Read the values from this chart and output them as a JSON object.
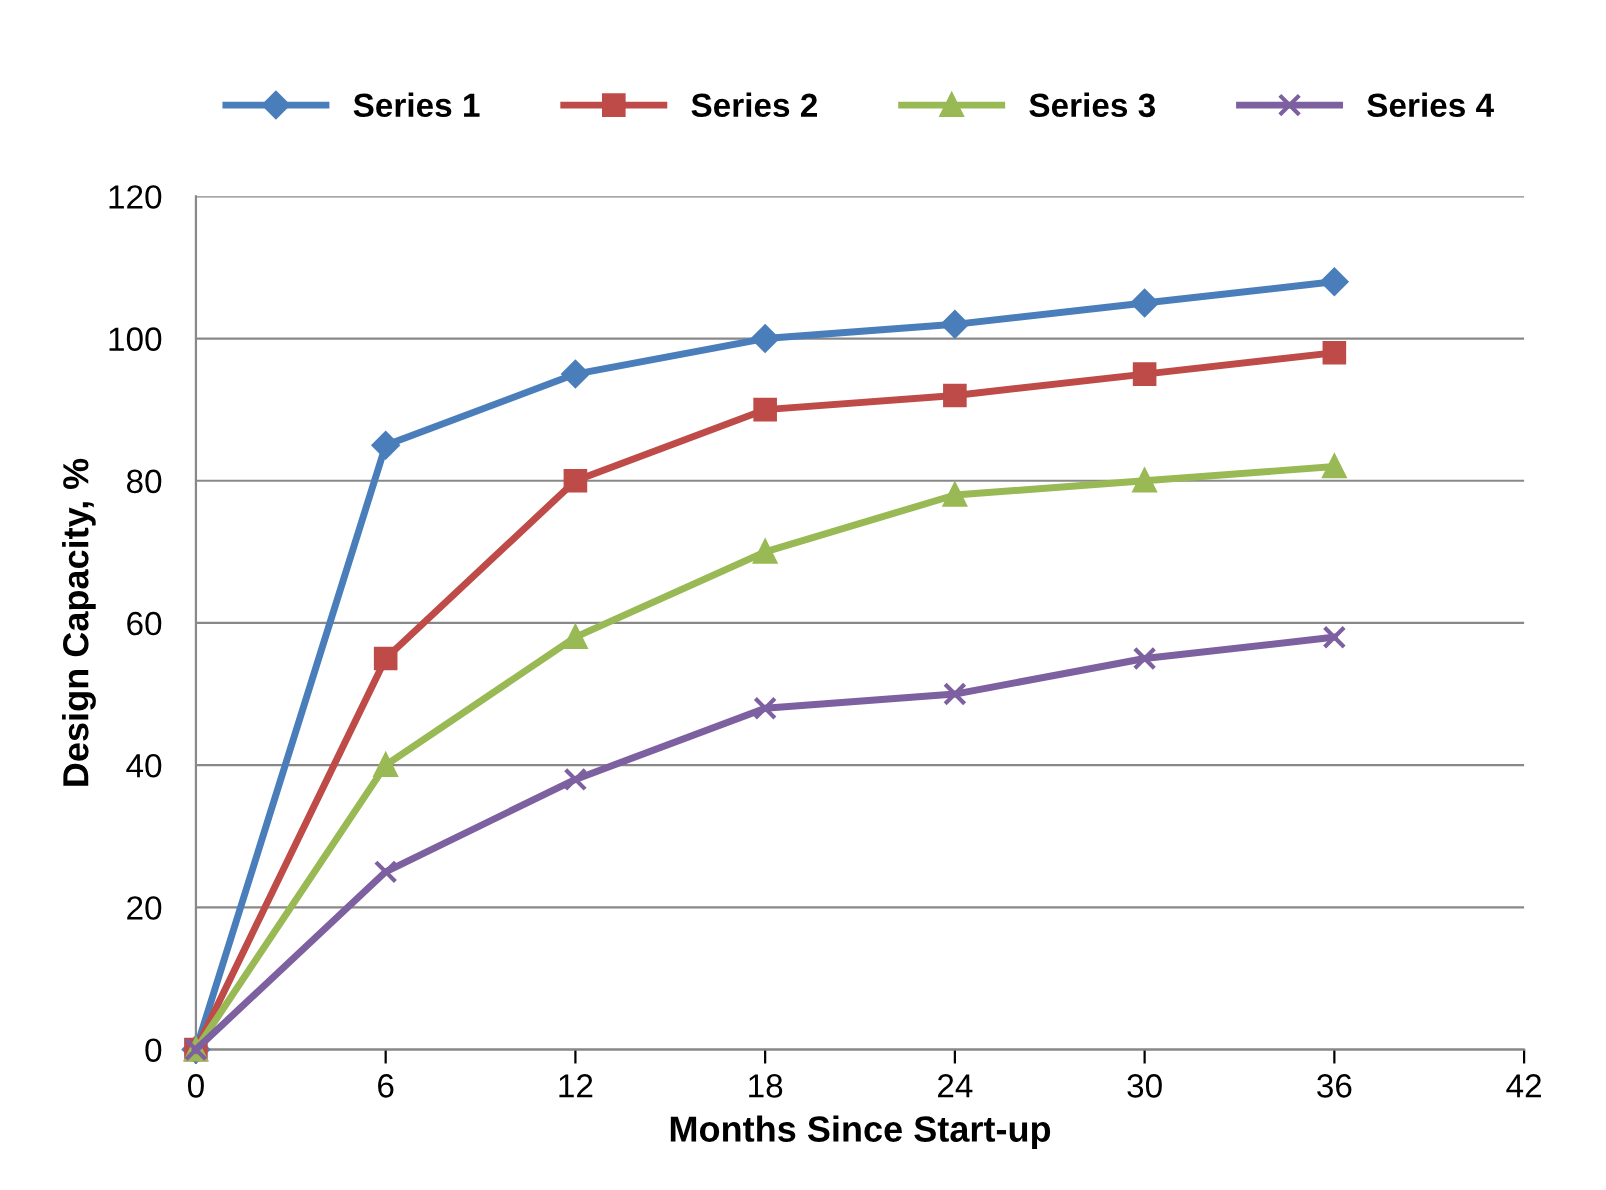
{
  "chart_data": {
    "type": "line",
    "xlabel": "Months Since Start-up",
    "ylabel": "Design Capacity, %",
    "x": [
      0,
      6,
      12,
      18,
      24,
      30,
      36
    ],
    "series": [
      {
        "name": "Series 1",
        "color": "#4a7ebb",
        "marker": "diamond",
        "values": [
          0,
          85,
          95,
          100,
          102,
          105,
          108
        ]
      },
      {
        "name": "Series 2",
        "color": "#be4b48",
        "marker": "square",
        "values": [
          0,
          55,
          80,
          90,
          92,
          95,
          98
        ]
      },
      {
        "name": "Series 3",
        "color": "#98b954",
        "marker": "triangle",
        "values": [
          0,
          40,
          58,
          70,
          78,
          80,
          82
        ]
      },
      {
        "name": "Series 4",
        "color": "#7d60a0",
        "marker": "cross",
        "values": [
          0,
          25,
          38,
          48,
          50,
          55,
          58
        ]
      }
    ],
    "xlim": [
      0,
      42
    ],
    "xticks": [
      0,
      6,
      12,
      18,
      24,
      30,
      36,
      42
    ],
    "ylim": [
      0,
      120
    ],
    "yticks": [
      0,
      20,
      40,
      60,
      80,
      100,
      120
    ],
    "grid": "y",
    "legend": "top",
    "line_style": "solid"
  }
}
